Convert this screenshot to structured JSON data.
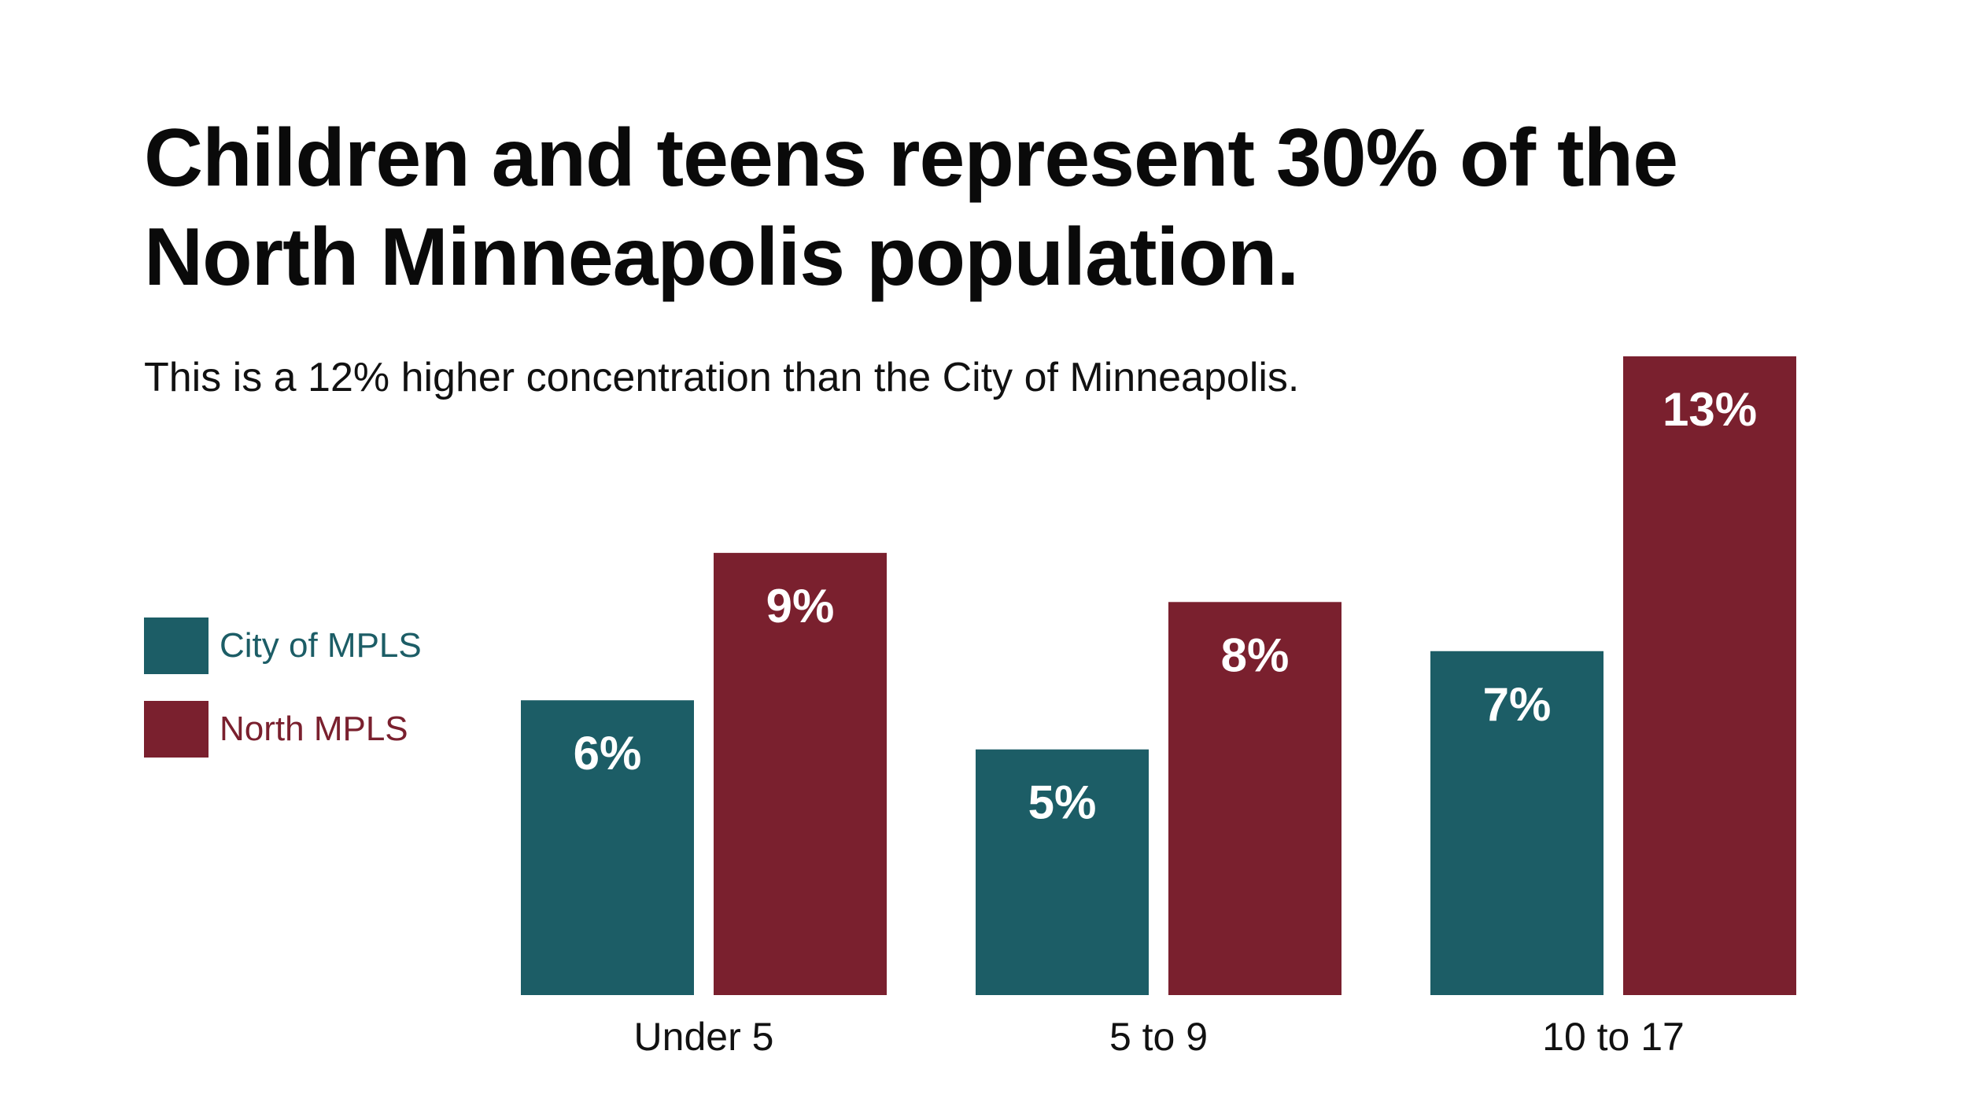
{
  "chart_data": {
    "type": "bar",
    "title": "Children and teens represent 30% of the North Minneapolis population.",
    "subtitle": "This is a 12% higher concentration than the City of Minneapolis.",
    "categories": [
      "Under 5",
      "5 to 9",
      "10 to 17"
    ],
    "series": [
      {
        "name": "City of MPLS",
        "color": "#1c5d66",
        "values": [
          6,
          5,
          7
        ],
        "labels": [
          "6%",
          "5%",
          "7%"
        ]
      },
      {
        "name": "North MPLS",
        "color": "#7a202e",
        "values": [
          9,
          8,
          13
        ],
        "labels": [
          "9%",
          "8%",
          "13%"
        ]
      }
    ],
    "ylim": [
      0,
      13
    ],
    "grid": false,
    "legend_position": "left"
  }
}
